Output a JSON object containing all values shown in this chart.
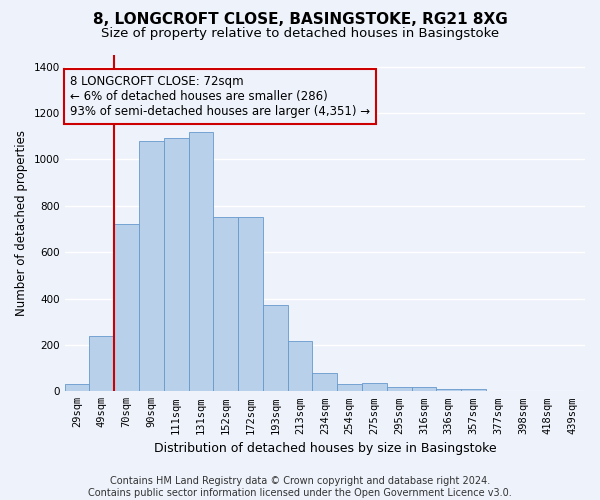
{
  "title": "8, LONGCROFT CLOSE, BASINGSTOKE, RG21 8XG",
  "subtitle": "Size of property relative to detached houses in Basingstoke",
  "xlabel": "Distribution of detached houses by size in Basingstoke",
  "ylabel": "Number of detached properties",
  "bar_color": "#b8d0ea",
  "bar_edge_color": "#6699cc",
  "categories": [
    "29sqm",
    "49sqm",
    "70sqm",
    "90sqm",
    "111sqm",
    "131sqm",
    "152sqm",
    "172sqm",
    "193sqm",
    "213sqm",
    "234sqm",
    "254sqm",
    "275sqm",
    "295sqm",
    "316sqm",
    "336sqm",
    "357sqm",
    "377sqm",
    "398sqm",
    "418sqm",
    "439sqm"
  ],
  "values": [
    30,
    240,
    720,
    1080,
    1090,
    1120,
    750,
    750,
    370,
    215,
    80,
    30,
    35,
    20,
    20,
    8,
    8,
    0,
    0,
    0,
    0
  ],
  "ylim": [
    0,
    1450
  ],
  "yticks": [
    0,
    200,
    400,
    600,
    800,
    1000,
    1200,
    1400
  ],
  "vline_index": 1.5,
  "property_line_label": "8 LONGCROFT CLOSE: 72sqm",
  "annotation_line1": "← 6% of detached houses are smaller (286)",
  "annotation_line2": "93% of semi-detached houses are larger (4,351) →",
  "vline_color": "#cc0000",
  "box_edge_color": "#cc0000",
  "background_color": "#eef2fb",
  "footer_line1": "Contains HM Land Registry data © Crown copyright and database right 2024.",
  "footer_line2": "Contains public sector information licensed under the Open Government Licence v3.0.",
  "grid_color": "#ffffff",
  "title_fontsize": 11,
  "subtitle_fontsize": 9.5,
  "ylabel_fontsize": 8.5,
  "xlabel_fontsize": 9,
  "tick_fontsize": 7.5,
  "footer_fontsize": 7,
  "annot_fontsize": 8.5
}
